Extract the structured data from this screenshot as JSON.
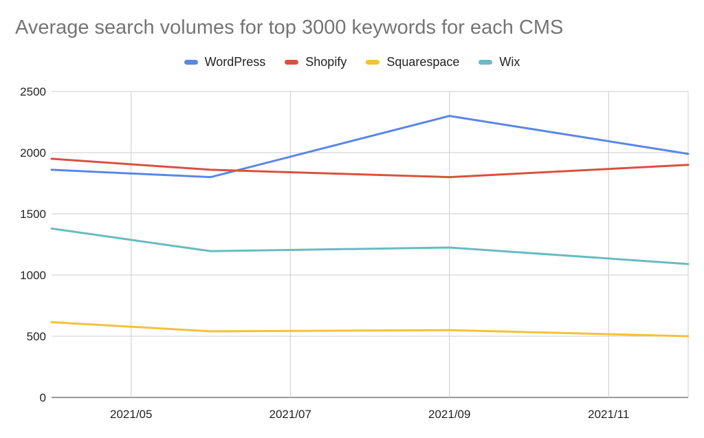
{
  "chart_data": {
    "type": "line",
    "title": "Average search volumes for top 3000 keywords for each CMS",
    "xlabel": "",
    "ylabel": "",
    "x_ticks": [
      "2021/05",
      "2021/07",
      "2021/09",
      "2021/11"
    ],
    "x": [
      "2021-04",
      "2021-06",
      "2021-09",
      "2021-12"
    ],
    "xlim": [
      "2021-04",
      "2021-12"
    ],
    "y_ticks": [
      0,
      500,
      1000,
      1500,
      2000,
      2500
    ],
    "ylim": [
      0,
      2500
    ],
    "grid": true,
    "legend_position": "top",
    "series": [
      {
        "name": "WordPress",
        "color": "#5b86e5",
        "values": [
          1860,
          1800,
          2300,
          1990
        ]
      },
      {
        "name": "Shopify",
        "color": "#d9513f",
        "values": [
          1950,
          1860,
          1800,
          1900
        ]
      },
      {
        "name": "Squarespace",
        "color": "#f3c13a",
        "values": [
          615,
          540,
          550,
          500
        ]
      },
      {
        "name": "Wix",
        "color": "#66bcc1",
        "values": [
          1380,
          1195,
          1225,
          1090
        ]
      }
    ]
  }
}
